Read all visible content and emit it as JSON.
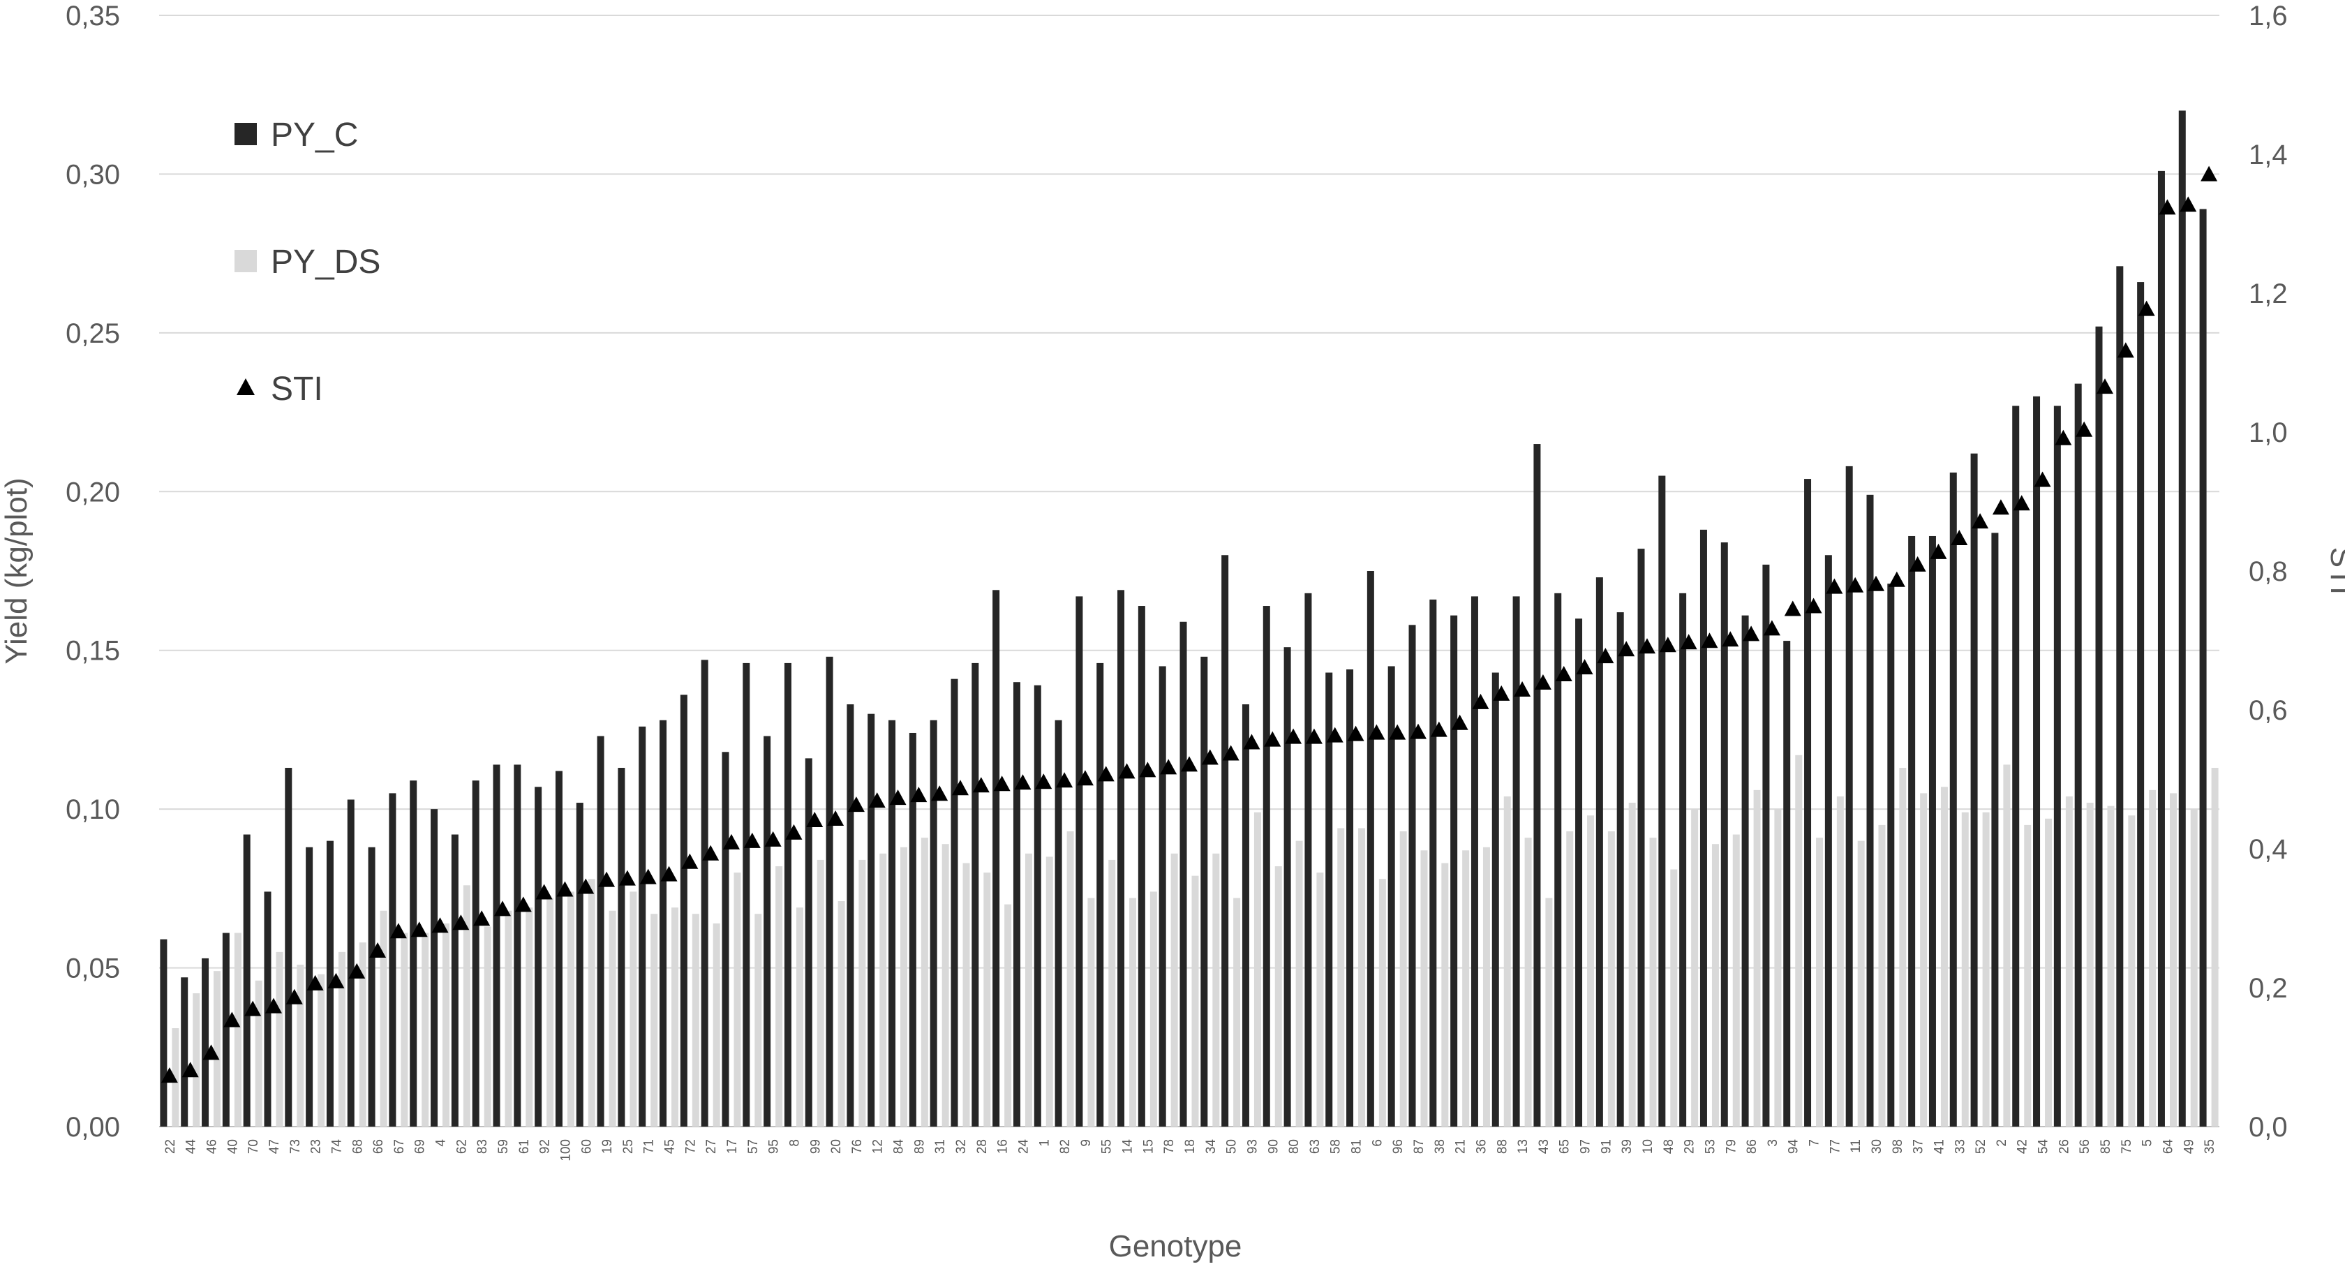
{
  "chart_data": {
    "type": "bar",
    "xlabel": "Genotype",
    "ylabel": "Yield (kg/plot)",
    "y2label": "STI",
    "ylim": [
      0,
      0.35
    ],
    "y2lim": [
      0,
      1.6
    ],
    "yticks": [
      "0,00",
      "0,05",
      "0,10",
      "0,15",
      "0,20",
      "0,25",
      "0,30",
      "0,35"
    ],
    "y2ticks": [
      "0,0",
      "0,2",
      "0,4",
      "0,6",
      "0,8",
      "1,0",
      "1,2",
      "1,4",
      "1,6"
    ],
    "grid": true,
    "legend_position": "top-left",
    "categories": [
      "22",
      "44",
      "46",
      "40",
      "70",
      "47",
      "73",
      "23",
      "74",
      "68",
      "66",
      "67",
      "69",
      "4",
      "62",
      "83",
      "59",
      "61",
      "92",
      "100",
      "60",
      "19",
      "25",
      "71",
      "45",
      "72",
      "27",
      "17",
      "57",
      "95",
      "8",
      "99",
      "20",
      "76",
      "12",
      "84",
      "89",
      "31",
      "32",
      "28",
      "16",
      "24",
      "1",
      "82",
      "9",
      "55",
      "14",
      "15",
      "78",
      "18",
      "34",
      "50",
      "93",
      "90",
      "80",
      "63",
      "58",
      "81",
      "6",
      "96",
      "87",
      "38",
      "21",
      "36",
      "88",
      "13",
      "43",
      "65",
      "97",
      "91",
      "39",
      "10",
      "48",
      "29",
      "53",
      "79",
      "86",
      "3",
      "94",
      "7",
      "77",
      "11",
      "30",
      "98",
      "37",
      "41",
      "33",
      "52",
      "2",
      "42",
      "54",
      "26",
      "56",
      "85",
      "75",
      "5",
      "64",
      "49",
      "35"
    ],
    "series": [
      {
        "name": "PY_C",
        "kind": "bar",
        "color": "#262626",
        "axis": "left",
        "values": [
          0.059,
          0.047,
          0.053,
          0.061,
          0.092,
          0.074,
          0.113,
          0.088,
          0.09,
          0.103,
          0.088,
          0.105,
          0.109,
          0.1,
          0.092,
          0.109,
          0.114,
          0.114,
          0.107,
          0.112,
          0.102,
          0.123,
          0.113,
          0.126,
          0.128,
          0.136,
          0.147,
          0.118,
          0.146,
          0.123,
          0.146,
          0.116,
          0.148,
          0.133,
          0.13,
          0.128,
          0.124,
          0.128,
          0.141,
          0.146,
          0.169,
          0.14,
          0.139,
          0.128,
          0.167,
          0.146,
          0.169,
          0.164,
          0.145,
          0.159,
          0.148,
          0.18,
          0.133,
          0.164,
          0.151,
          0.168,
          0.143,
          0.144,
          0.175,
          0.145,
          0.158,
          0.166,
          0.161,
          0.167,
          0.143,
          0.167,
          0.215,
          0.168,
          0.16,
          0.173,
          0.162,
          0.182,
          0.205,
          0.168,
          0.188,
          0.184,
          0.161,
          0.177,
          0.153,
          0.204,
          0.18,
          0.208,
          0.199,
          0.171,
          0.186,
          0.186,
          0.206,
          0.212,
          0.187,
          0.227,
          0.23,
          0.227,
          0.234,
          0.252,
          0.271,
          0.266,
          0.301,
          0.32,
          0.289
        ]
      },
      {
        "name": "PY_DS",
        "kind": "bar",
        "color": "#d9d9d9",
        "axis": "left",
        "values": [
          0.031,
          0.042,
          0.049,
          0.061,
          0.046,
          0.055,
          0.051,
          0.048,
          0.055,
          0.058,
          0.068,
          0.061,
          0.061,
          0.064,
          0.076,
          0.063,
          0.068,
          0.069,
          0.072,
          0.074,
          0.078,
          0.068,
          0.074,
          0.067,
          0.069,
          0.067,
          0.064,
          0.08,
          0.067,
          0.082,
          0.069,
          0.084,
          0.071,
          0.084,
          0.086,
          0.088,
          0.091,
          0.089,
          0.083,
          0.08,
          0.07,
          0.086,
          0.085,
          0.093,
          0.072,
          0.084,
          0.072,
          0.074,
          0.086,
          0.079,
          0.086,
          0.072,
          0.099,
          0.082,
          0.09,
          0.08,
          0.094,
          0.094,
          0.078,
          0.093,
          0.087,
          0.083,
          0.087,
          0.088,
          0.104,
          0.091,
          0.072,
          0.093,
          0.098,
          0.093,
          0.102,
          0.091,
          0.081,
          0.1,
          0.089,
          0.092,
          0.106,
          0.1,
          0.117,
          0.091,
          0.104,
          0.09,
          0.095,
          0.113,
          0.105,
          0.107,
          0.099,
          0.099,
          0.114,
          0.095,
          0.097,
          0.104,
          0.102,
          0.101,
          0.098,
          0.106,
          0.105,
          0.1,
          0.113
        ]
      },
      {
        "name": "STI",
        "kind": "marker",
        "marker": "triangle",
        "color": "#000000",
        "axis": "right",
        "values": [
          0.072,
          0.08,
          0.105,
          0.152,
          0.168,
          0.172,
          0.185,
          0.205,
          0.208,
          0.222,
          0.252,
          0.28,
          0.282,
          0.288,
          0.292,
          0.298,
          0.312,
          0.318,
          0.336,
          0.34,
          0.344,
          0.354,
          0.356,
          0.358,
          0.362,
          0.38,
          0.392,
          0.408,
          0.41,
          0.412,
          0.422,
          0.44,
          0.442,
          0.462,
          0.468,
          0.472,
          0.476,
          0.478,
          0.486,
          0.49,
          0.492,
          0.494,
          0.495,
          0.497,
          0.5,
          0.506,
          0.51,
          0.512,
          0.516,
          0.52,
          0.53,
          0.536,
          0.552,
          0.556,
          0.56,
          0.56,
          0.562,
          0.564,
          0.566,
          0.566,
          0.567,
          0.57,
          0.58,
          0.61,
          0.622,
          0.628,
          0.638,
          0.65,
          0.66,
          0.676,
          0.686,
          0.69,
          0.692,
          0.696,
          0.698,
          0.7,
          0.708,
          0.716,
          0.744,
          0.748,
          0.776,
          0.778,
          0.78,
          0.786,
          0.808,
          0.826,
          0.846,
          0.87,
          0.89,
          0.896,
          0.93,
          0.99,
          1.002,
          1.064,
          1.116,
          1.176,
          1.322,
          1.326,
          1.37
        ]
      }
    ]
  }
}
